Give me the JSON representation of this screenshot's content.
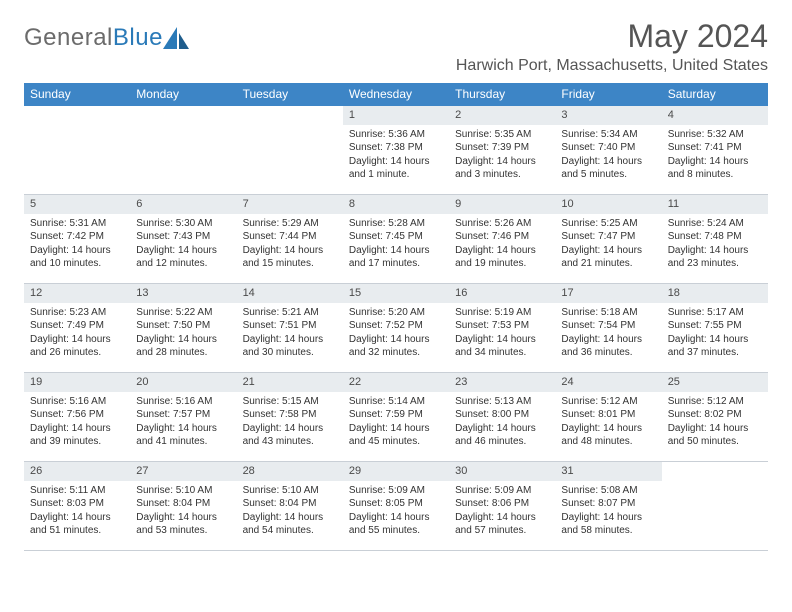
{
  "logo": {
    "text1": "General",
    "text2": "Blue"
  },
  "title": "May 2024",
  "location": "Harwich Port, Massachusetts, United States",
  "colors": {
    "header_bg": "#3d85c6",
    "header_text": "#ffffff",
    "daynum_bg": "#e8ecef",
    "row_border": "#c9cfd6",
    "text": "#333333",
    "title_text": "#555555"
  },
  "day_names": [
    "Sunday",
    "Monday",
    "Tuesday",
    "Wednesday",
    "Thursday",
    "Friday",
    "Saturday"
  ],
  "weeks": [
    [
      {
        "n": "",
        "sunrise": "",
        "sunset": "",
        "daylight": ""
      },
      {
        "n": "",
        "sunrise": "",
        "sunset": "",
        "daylight": ""
      },
      {
        "n": "",
        "sunrise": "",
        "sunset": "",
        "daylight": ""
      },
      {
        "n": "1",
        "sunrise": "Sunrise: 5:36 AM",
        "sunset": "Sunset: 7:38 PM",
        "daylight": "Daylight: 14 hours and 1 minute."
      },
      {
        "n": "2",
        "sunrise": "Sunrise: 5:35 AM",
        "sunset": "Sunset: 7:39 PM",
        "daylight": "Daylight: 14 hours and 3 minutes."
      },
      {
        "n": "3",
        "sunrise": "Sunrise: 5:34 AM",
        "sunset": "Sunset: 7:40 PM",
        "daylight": "Daylight: 14 hours and 5 minutes."
      },
      {
        "n": "4",
        "sunrise": "Sunrise: 5:32 AM",
        "sunset": "Sunset: 7:41 PM",
        "daylight": "Daylight: 14 hours and 8 minutes."
      }
    ],
    [
      {
        "n": "5",
        "sunrise": "Sunrise: 5:31 AM",
        "sunset": "Sunset: 7:42 PM",
        "daylight": "Daylight: 14 hours and 10 minutes."
      },
      {
        "n": "6",
        "sunrise": "Sunrise: 5:30 AM",
        "sunset": "Sunset: 7:43 PM",
        "daylight": "Daylight: 14 hours and 12 minutes."
      },
      {
        "n": "7",
        "sunrise": "Sunrise: 5:29 AM",
        "sunset": "Sunset: 7:44 PM",
        "daylight": "Daylight: 14 hours and 15 minutes."
      },
      {
        "n": "8",
        "sunrise": "Sunrise: 5:28 AM",
        "sunset": "Sunset: 7:45 PM",
        "daylight": "Daylight: 14 hours and 17 minutes."
      },
      {
        "n": "9",
        "sunrise": "Sunrise: 5:26 AM",
        "sunset": "Sunset: 7:46 PM",
        "daylight": "Daylight: 14 hours and 19 minutes."
      },
      {
        "n": "10",
        "sunrise": "Sunrise: 5:25 AM",
        "sunset": "Sunset: 7:47 PM",
        "daylight": "Daylight: 14 hours and 21 minutes."
      },
      {
        "n": "11",
        "sunrise": "Sunrise: 5:24 AM",
        "sunset": "Sunset: 7:48 PM",
        "daylight": "Daylight: 14 hours and 23 minutes."
      }
    ],
    [
      {
        "n": "12",
        "sunrise": "Sunrise: 5:23 AM",
        "sunset": "Sunset: 7:49 PM",
        "daylight": "Daylight: 14 hours and 26 minutes."
      },
      {
        "n": "13",
        "sunrise": "Sunrise: 5:22 AM",
        "sunset": "Sunset: 7:50 PM",
        "daylight": "Daylight: 14 hours and 28 minutes."
      },
      {
        "n": "14",
        "sunrise": "Sunrise: 5:21 AM",
        "sunset": "Sunset: 7:51 PM",
        "daylight": "Daylight: 14 hours and 30 minutes."
      },
      {
        "n": "15",
        "sunrise": "Sunrise: 5:20 AM",
        "sunset": "Sunset: 7:52 PM",
        "daylight": "Daylight: 14 hours and 32 minutes."
      },
      {
        "n": "16",
        "sunrise": "Sunrise: 5:19 AM",
        "sunset": "Sunset: 7:53 PM",
        "daylight": "Daylight: 14 hours and 34 minutes."
      },
      {
        "n": "17",
        "sunrise": "Sunrise: 5:18 AM",
        "sunset": "Sunset: 7:54 PM",
        "daylight": "Daylight: 14 hours and 36 minutes."
      },
      {
        "n": "18",
        "sunrise": "Sunrise: 5:17 AM",
        "sunset": "Sunset: 7:55 PM",
        "daylight": "Daylight: 14 hours and 37 minutes."
      }
    ],
    [
      {
        "n": "19",
        "sunrise": "Sunrise: 5:16 AM",
        "sunset": "Sunset: 7:56 PM",
        "daylight": "Daylight: 14 hours and 39 minutes."
      },
      {
        "n": "20",
        "sunrise": "Sunrise: 5:16 AM",
        "sunset": "Sunset: 7:57 PM",
        "daylight": "Daylight: 14 hours and 41 minutes."
      },
      {
        "n": "21",
        "sunrise": "Sunrise: 5:15 AM",
        "sunset": "Sunset: 7:58 PM",
        "daylight": "Daylight: 14 hours and 43 minutes."
      },
      {
        "n": "22",
        "sunrise": "Sunrise: 5:14 AM",
        "sunset": "Sunset: 7:59 PM",
        "daylight": "Daylight: 14 hours and 45 minutes."
      },
      {
        "n": "23",
        "sunrise": "Sunrise: 5:13 AM",
        "sunset": "Sunset: 8:00 PM",
        "daylight": "Daylight: 14 hours and 46 minutes."
      },
      {
        "n": "24",
        "sunrise": "Sunrise: 5:12 AM",
        "sunset": "Sunset: 8:01 PM",
        "daylight": "Daylight: 14 hours and 48 minutes."
      },
      {
        "n": "25",
        "sunrise": "Sunrise: 5:12 AM",
        "sunset": "Sunset: 8:02 PM",
        "daylight": "Daylight: 14 hours and 50 minutes."
      }
    ],
    [
      {
        "n": "26",
        "sunrise": "Sunrise: 5:11 AM",
        "sunset": "Sunset: 8:03 PM",
        "daylight": "Daylight: 14 hours and 51 minutes."
      },
      {
        "n": "27",
        "sunrise": "Sunrise: 5:10 AM",
        "sunset": "Sunset: 8:04 PM",
        "daylight": "Daylight: 14 hours and 53 minutes."
      },
      {
        "n": "28",
        "sunrise": "Sunrise: 5:10 AM",
        "sunset": "Sunset: 8:04 PM",
        "daylight": "Daylight: 14 hours and 54 minutes."
      },
      {
        "n": "29",
        "sunrise": "Sunrise: 5:09 AM",
        "sunset": "Sunset: 8:05 PM",
        "daylight": "Daylight: 14 hours and 55 minutes."
      },
      {
        "n": "30",
        "sunrise": "Sunrise: 5:09 AM",
        "sunset": "Sunset: 8:06 PM",
        "daylight": "Daylight: 14 hours and 57 minutes."
      },
      {
        "n": "31",
        "sunrise": "Sunrise: 5:08 AM",
        "sunset": "Sunset: 8:07 PM",
        "daylight": "Daylight: 14 hours and 58 minutes."
      },
      {
        "n": "",
        "sunrise": "",
        "sunset": "",
        "daylight": ""
      }
    ]
  ]
}
